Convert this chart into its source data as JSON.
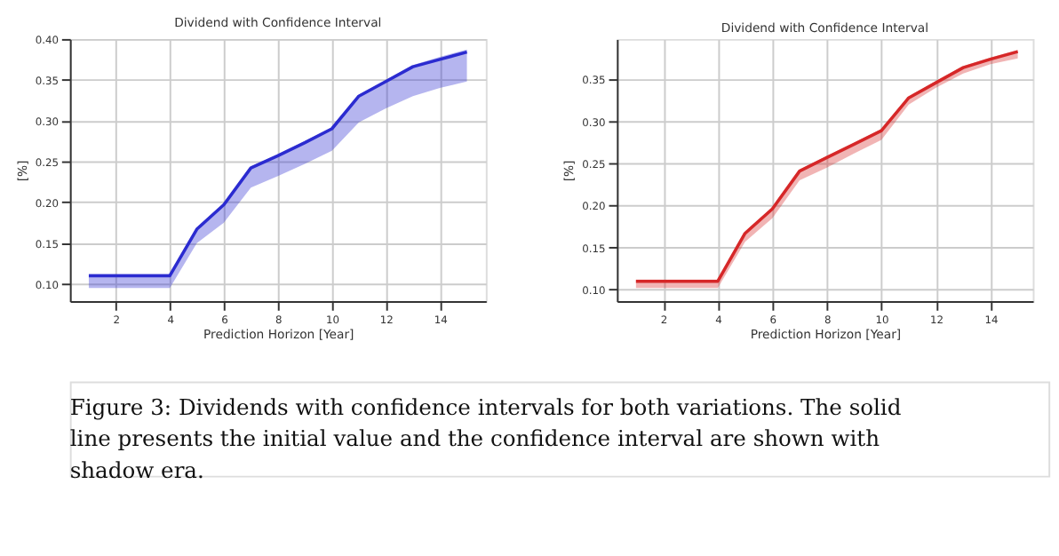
{
  "chart_data": [
    {
      "type": "line",
      "title": "Dividend with Confidence Interval",
      "xlabel": "Prediction Horizon [Year]",
      "ylabel": "[%]",
      "x": [
        1,
        2,
        3,
        4,
        5,
        6,
        7,
        8,
        9,
        10,
        11,
        12,
        13,
        14,
        15
      ],
      "series": [
        {
          "color": "#2b2bd0",
          "values": [
            0.11,
            0.11,
            0.11,
            0.11,
            0.167,
            0.197,
            0.242,
            0.257,
            0.273,
            0.29,
            0.33,
            0.348,
            0.366,
            0.375,
            0.384
          ],
          "lower": [
            0.095,
            0.095,
            0.095,
            0.095,
            0.15,
            0.175,
            0.218,
            0.232,
            0.247,
            0.263,
            0.298,
            0.315,
            0.33,
            0.34,
            0.348
          ],
          "upper": [
            0.112,
            0.112,
            0.112,
            0.112,
            0.169,
            0.199,
            0.244,
            0.259,
            0.275,
            0.292,
            0.332,
            0.35,
            0.368,
            0.378,
            0.387
          ]
        }
      ],
      "xlim": [
        0.3,
        15.7
      ],
      "ylim": [
        0.079,
        0.4
      ],
      "xticks": [
        2,
        4,
        6,
        8,
        10,
        12,
        14
      ],
      "yticks": [
        {
          "value": 0.1,
          "label": "0.10"
        },
        {
          "value": 0.15,
          "label": "0.15"
        },
        {
          "value": 0.2,
          "label": "0.20"
        },
        {
          "value": 0.25,
          "label": "0.25"
        },
        {
          "value": 0.3,
          "label": "0.30"
        },
        {
          "value": 0.35,
          "label": "0.35"
        },
        {
          "value": 0.4,
          "label": "0.40"
        }
      ],
      "grid": true
    },
    {
      "type": "line",
      "title": "Dividend with Confidence Interval",
      "xlabel": "Prediction Horizon [Year]",
      "ylabel": "[%]",
      "x": [
        1,
        2,
        3,
        4,
        5,
        6,
        7,
        8,
        9,
        10,
        11,
        12,
        13,
        14,
        15
      ],
      "series": [
        {
          "color": "#d62728",
          "values": [
            0.11,
            0.11,
            0.11,
            0.11,
            0.167,
            0.196,
            0.241,
            0.257,
            0.273,
            0.289,
            0.328,
            0.346,
            0.364,
            0.374,
            0.383
          ],
          "lower": [
            0.102,
            0.102,
            0.102,
            0.102,
            0.157,
            0.185,
            0.23,
            0.245,
            0.262,
            0.278,
            0.32,
            0.34,
            0.357,
            0.368,
            0.375
          ],
          "upper": [
            0.112,
            0.112,
            0.112,
            0.112,
            0.169,
            0.198,
            0.243,
            0.259,
            0.275,
            0.291,
            0.33,
            0.348,
            0.366,
            0.376,
            0.385
          ]
        }
      ],
      "xlim": [
        0.3,
        15.55
      ],
      "ylim": [
        0.0865,
        0.398
      ],
      "xticks": [
        2,
        4,
        6,
        8,
        10,
        12,
        14
      ],
      "yticks": [
        {
          "value": 0.1,
          "label": "0.10"
        },
        {
          "value": 0.15,
          "label": "0.15"
        },
        {
          "value": 0.2,
          "label": "0.20"
        },
        {
          "value": 0.25,
          "label": "0.25"
        },
        {
          "value": 0.3,
          "label": "0.30"
        },
        {
          "value": 0.35,
          "label": "0.35"
        }
      ],
      "grid": true,
      "annotations": [
        "Figure 3: Dividends with confidence intervals for both variations. The solid line presents the initial value and the confidence interval are shown with shadow era."
      ]
    }
  ]
}
